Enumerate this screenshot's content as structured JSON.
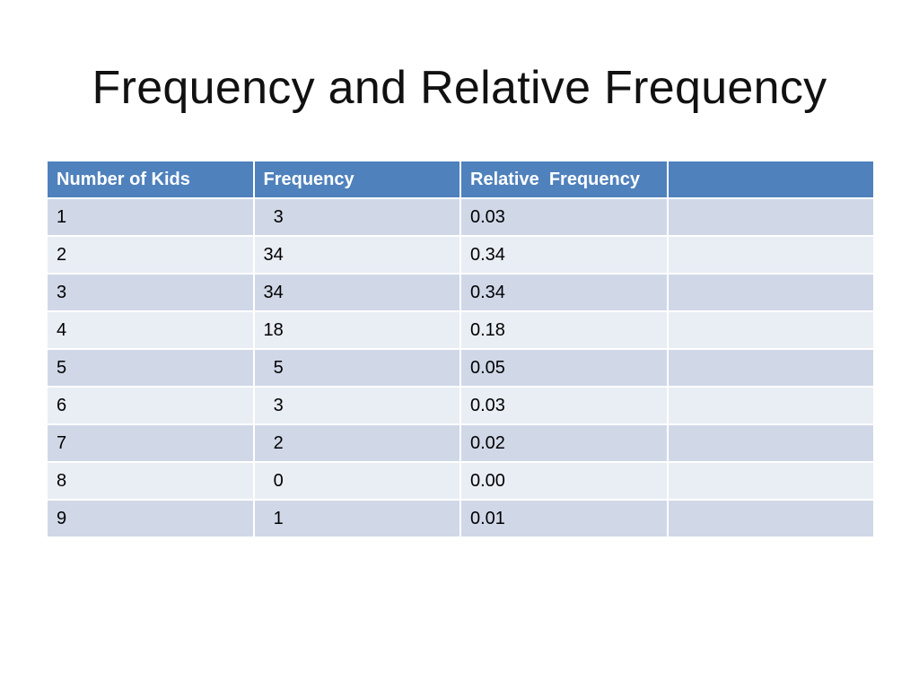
{
  "slide": {
    "title": "Frequency and Relative Frequency"
  },
  "table": {
    "headers": [
      "Number of Kids",
      "Frequency",
      "Relative  Frequency",
      ""
    ],
    "rows": [
      [
        "1",
        "  3",
        "0.03",
        ""
      ],
      [
        "2",
        "34",
        "0.34",
        ""
      ],
      [
        "3",
        "34",
        "0.34",
        ""
      ],
      [
        "4",
        "18",
        "0.18",
        ""
      ],
      [
        "5",
        "  5",
        "0.05",
        ""
      ],
      [
        "6",
        "  3",
        "0.03",
        ""
      ],
      [
        "7",
        "  2",
        "0.02",
        ""
      ],
      [
        "8",
        "  0",
        "0.00",
        ""
      ],
      [
        "9",
        "  1",
        "0.01",
        ""
      ]
    ]
  },
  "colors": {
    "header_bg": "#4f81bd",
    "row_odd_bg": "#d0d8e8",
    "row_even_bg": "#e9edf4"
  }
}
